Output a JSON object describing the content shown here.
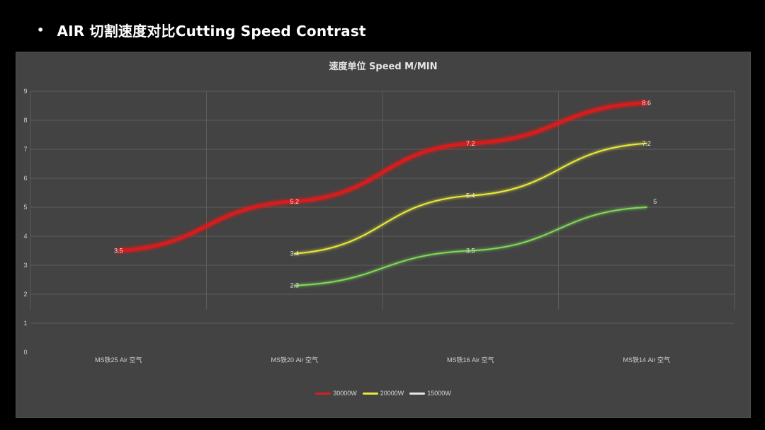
{
  "slide": {
    "bullet": "•",
    "heading": "AIR 切割速度对比Cutting Speed Contrast"
  },
  "chart_data": {
    "type": "line",
    "title": "速度单位 Speed M/MIN",
    "xlabel": "",
    "ylabel": "",
    "categories": [
      "MS铁25 Air 空气",
      "MS铁20 Air 空气",
      "MS铁16 Air 空气",
      "MS铁14 Air 空气"
    ],
    "ylim": [
      0,
      9
    ],
    "yticks": [
      0,
      1,
      2,
      3,
      4,
      5,
      6,
      7,
      8,
      9
    ],
    "grid": true,
    "legend_position": "bottom",
    "series": [
      {
        "name": "30000W",
        "color": "#d61f1f",
        "values": [
          3.5,
          5.2,
          7.2,
          8.6
        ],
        "labels": [
          "3.5",
          "5.2",
          "7.2",
          "8.6"
        ]
      },
      {
        "name": "20000W",
        "color": "#e8e83a",
        "values": [
          null,
          3.4,
          5.4,
          7.2
        ],
        "labels": [
          "",
          "3.4",
          "5.4",
          "7.2"
        ]
      },
      {
        "name": "15000W",
        "color": "#7ed957",
        "legend_color": "#e6e6e6",
        "values": [
          null,
          2.3,
          3.5,
          5
        ],
        "labels": [
          "",
          "2.3",
          "3.5",
          "5"
        ]
      }
    ]
  }
}
